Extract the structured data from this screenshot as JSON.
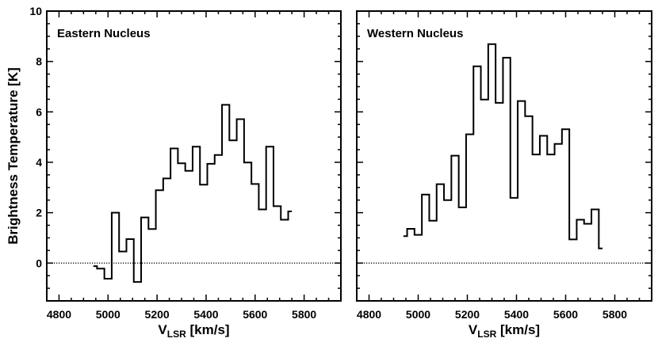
{
  "chart_data": [
    {
      "type": "line",
      "style": "step",
      "annotation": "Eastern Nucleus",
      "xlabel": {
        "main": "V",
        "sub": "LSR",
        "rest": " [km/s]"
      },
      "ylabel": "Brightness Temperature [K]",
      "xlim": [
        4750,
        5950
      ],
      "ylim": [
        -1.5,
        10
      ],
      "xticks": [
        4800,
        5000,
        5200,
        5400,
        5600,
        5800
      ],
      "yticks": [
        0,
        2,
        4,
        6,
        8,
        10
      ],
      "grid": false,
      "zero_line": "dotted",
      "x": [
        4940,
        4970,
        5000,
        5030,
        5060,
        5090,
        5120,
        5150,
        5180,
        5210,
        5240,
        5270,
        5300,
        5330,
        5360,
        5390,
        5420,
        5450,
        5480,
        5510,
        5540,
        5570,
        5600,
        5630,
        5660,
        5690,
        5720,
        5750
      ],
      "y": [
        -0.12,
        -0.22,
        -0.62,
        2.0,
        0.46,
        0.95,
        -0.75,
        1.81,
        1.35,
        2.89,
        3.36,
        4.55,
        3.96,
        3.66,
        4.62,
        3.11,
        3.94,
        4.29,
        6.28,
        4.87,
        5.71,
        3.99,
        3.14,
        2.13,
        4.62,
        2.26,
        1.72,
        2.05
      ]
    },
    {
      "type": "line",
      "style": "step",
      "annotation": "Western Nucleus",
      "xlabel": {
        "main": "V",
        "sub": "LSR",
        "rest": " [km/s]"
      },
      "ylabel": "",
      "xlim": [
        4750,
        5950
      ],
      "ylim": [
        -1.5,
        10
      ],
      "xticks": [
        4800,
        5000,
        5200,
        5400,
        5600,
        5800
      ],
      "yticks": [],
      "grid": false,
      "zero_line": "dotted",
      "x": [
        4940,
        4970,
        5000,
        5030,
        5060,
        5090,
        5120,
        5150,
        5180,
        5210,
        5240,
        5270,
        5300,
        5330,
        5360,
        5390,
        5420,
        5450,
        5480,
        5510,
        5540,
        5570,
        5600,
        5630,
        5660,
        5690,
        5720,
        5750
      ],
      "y": [
        1.07,
        1.36,
        1.12,
        2.72,
        1.68,
        3.13,
        2.5,
        4.26,
        2.21,
        5.11,
        7.81,
        6.49,
        8.69,
        6.36,
        8.15,
        2.59,
        6.43,
        5.83,
        4.31,
        5.05,
        4.31,
        4.73,
        5.31,
        0.94,
        1.72,
        1.56,
        2.13,
        0.58
      ]
    }
  ]
}
